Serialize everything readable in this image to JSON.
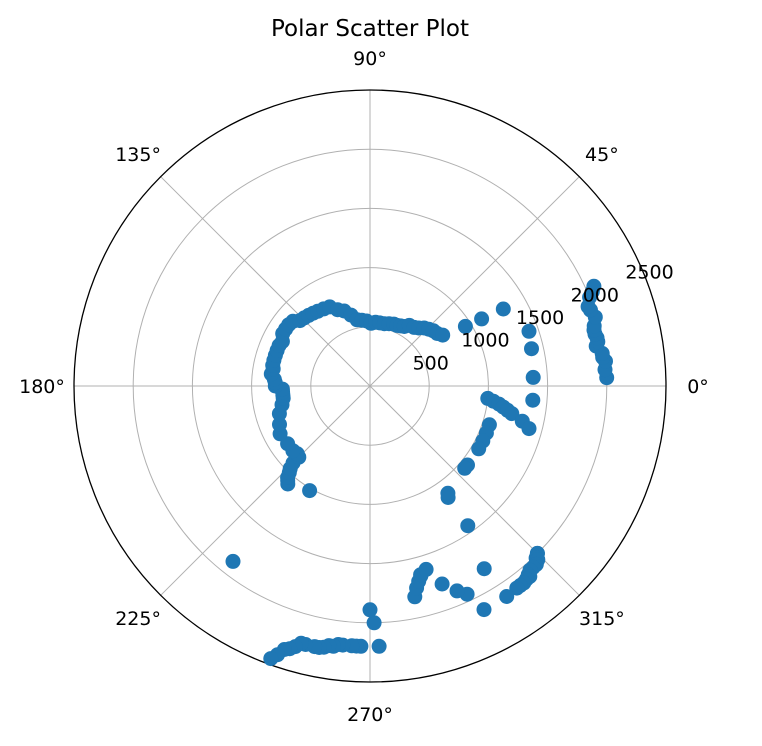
{
  "chart_data": {
    "type": "scatter",
    "projection": "polar",
    "title": "Polar Scatter Plot",
    "rlim": [
      0,
      2500
    ],
    "r_ticks": [
      500,
      1000,
      1500,
      2000,
      2500
    ],
    "r_tick_labels": [
      "500",
      "1000",
      "1500",
      "2000",
      "2500"
    ],
    "theta_ticks_deg": [
      0,
      45,
      90,
      135,
      180,
      225,
      270,
      315
    ],
    "theta_tick_labels": [
      "0°",
      "45°",
      "90°",
      "135°",
      "180°",
      "225°",
      "270°",
      "315°"
    ],
    "grid": true,
    "marker_color": "#1f77b4",
    "series": [
      {
        "theta_deg": [
          2,
          4,
          6,
          7,
          8,
          10,
          11,
          12,
          13,
          14,
          15,
          17,
          19,
          20,
          22,
          23,
          24,
          19,
          13,
          3,
          -5,
          -6,
          -7,
          -8,
          -9,
          -10,
          -11,
          -13,
          -15,
          -18,
          -22,
          -26,
          -30,
          -39,
          -41,
          -45,
          -45,
          -46,
          -46,
          -47,
          -48,
          -49,
          -50,
          -50,
          -51,
          -52,
          -53,
          -54,
          -57,
          -63,
          -58,
          -55,
          -55,
          -54,
          -65,
          -67,
          -70,
          -75,
          -78,
          -77,
          -76,
          -75,
          -73,
          -88,
          -89,
          -90,
          -92,
          -93,
          -94,
          -96,
          -97,
          -98,
          -99,
          -100,
          -101,
          -102,
          -104,
          -105,
          -106,
          -107,
          -108,
          -109,
          -110,
          -128,
          -120,
          -130,
          -131,
          -132,
          -133,
          -134,
          -135,
          -135,
          -137,
          -140,
          -145,
          -152,
          -157,
          -163,
          -168,
          -172,
          -174,
          -176,
          -178,
          180,
          178,
          176,
          173,
          170,
          168,
          165,
          162,
          159,
          156,
          153,
          149,
          146,
          143,
          140,
          137,
          134,
          131,
          128,
          125,
          121,
          117,
          113,
          109,
          105,
          101,
          97,
          93,
          89,
          85,
          81,
          77,
          73,
          69,
          66,
          63,
          60,
          57,
          53,
          50,
          47,
          44,
          41,
          38,
          35,
          32,
          31,
          30
        ],
        "r": [
          2000,
          1990,
          2000,
          1980,
          1980,
          1940,
          1960,
          1960,
          1950,
          1950,
          1960,
          1990,
          1970,
          1960,
          2000,
          2040,
          2070,
          1420,
          1400,
          1380,
          1380,
          1000,
          1050,
          1100,
          1140,
          1180,
          1220,
          1320,
          1390,
          1060,
          1060,
          1060,
          1060,
          1060,
          1060,
          2000,
          2000,
          2020,
          2040,
          2060,
          2060,
          2060,
          2080,
          2100,
          2100,
          2110,
          2110,
          2110,
          2120,
          2120,
          1820,
          1440,
          1150,
          1120,
          1940,
          1880,
          1780,
          1660,
          1820,
          1750,
          1700,
          1650,
          1620,
          2200,
          2000,
          1890,
          2200,
          2200,
          2200,
          2200,
          2200,
          2220,
          2220,
          2240,
          2250,
          2250,
          2250,
          2250,
          2290,
          2320,
          2340,
          2400,
          2450,
          1880,
          1020,
          1080,
          1060,
          1040,
          1000,
          970,
          920,
          850,
          840,
          850,
          850,
          860,
          830,
          800,
          760,
          740,
          740,
          740,
          740,
          800,
          800,
          810,
          840,
          830,
          840,
          840,
          840,
          840,
          840,
          830,
          860,
          860,
          860,
          850,
          810,
          800,
          790,
          780,
          770,
          760,
          750,
          700,
          670,
          620,
          570,
          560,
          550,
          530,
          540,
          540,
          540,
          550,
          560,
          560,
          570,
          580,
          610,
          620,
          640,
          670,
          690,
          710,
          720,
          750,
          950,
          1100,
          1300
        ]
      }
    ]
  }
}
